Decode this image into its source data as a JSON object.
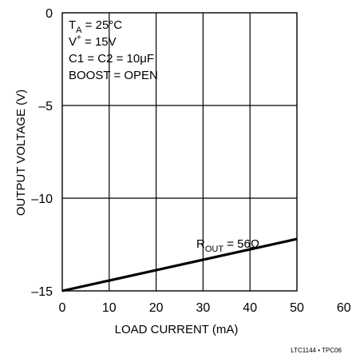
{
  "chart_data": {
    "type": "line",
    "xlabel": "LOAD CURRENT (mA)",
    "ylabel": "OUTPUT VOLTAGE (V)",
    "xlim": [
      0,
      60
    ],
    "ylim": [
      -15,
      0
    ],
    "x_ticks": [
      "0",
      "10",
      "20",
      "30",
      "40",
      "50",
      "60"
    ],
    "y_ticks": [
      "0",
      "–5",
      "–10",
      "–15"
    ],
    "grid": true,
    "series": [
      {
        "x": [
          0,
          10,
          20,
          30,
          40,
          50
        ],
        "y": [
          -15.0,
          -14.44,
          -13.88,
          -13.32,
          -12.76,
          -12.2
        ]
      }
    ],
    "annotation": {
      "rout": {
        "main": "R",
        "sub": "OUT",
        "rest": " = 56Ω"
      },
      "conditions": [
        {
          "main": "T",
          "sub": "A",
          "rest": " = 25°C"
        },
        {
          "main": "V",
          "sup": "+",
          "rest": " = 15V"
        },
        {
          "main": "C1 = C2 = 10μF"
        },
        {
          "main": "BOOST = OPEN"
        }
      ]
    },
    "footnote": "LTC1144 • TPC06"
  }
}
